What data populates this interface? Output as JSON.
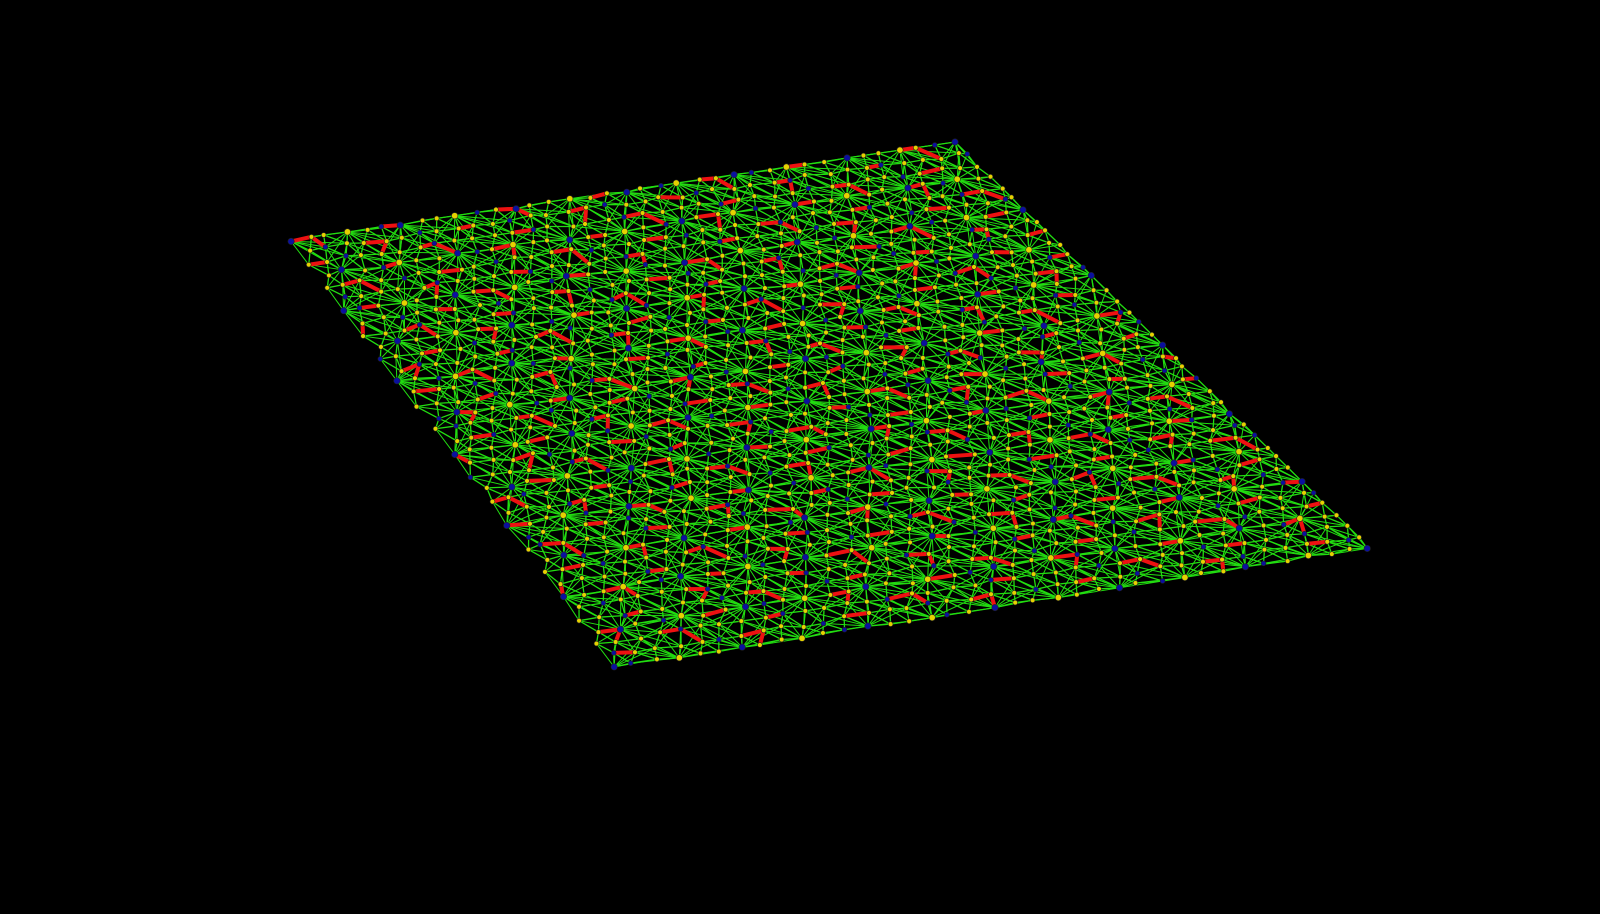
{
  "scene": {
    "background": "#000000",
    "mesh": {
      "edge_color": "#22dd11",
      "ring_edge_color": "#ee1111",
      "node_color_primary": "#e6d200",
      "node_color_secondary": "#0a10a0"
    }
  }
}
